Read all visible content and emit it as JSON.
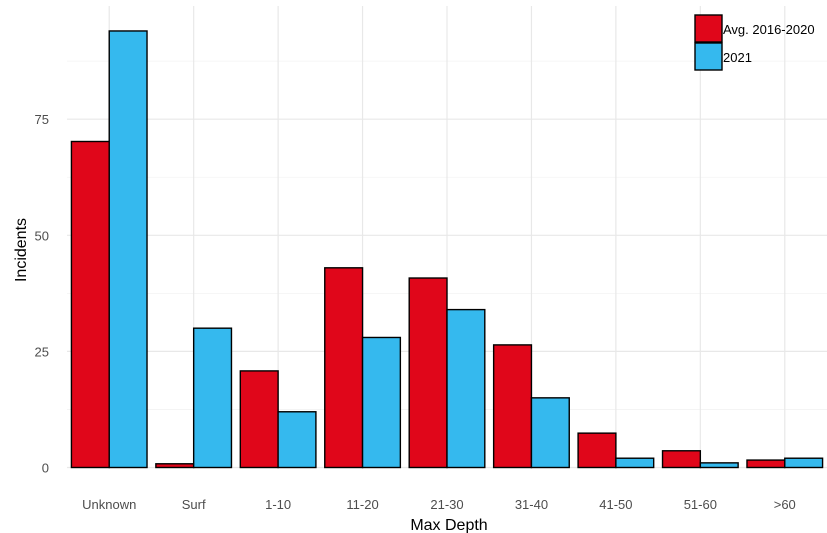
{
  "chart_data": {
    "type": "bar",
    "xlabel": "Max Depth",
    "ylabel": "Incidents",
    "categories": [
      "Unknown",
      "Surf",
      "1-10",
      "11-20",
      "21-30",
      "31-40",
      "41-50",
      "51-60",
      ">60"
    ],
    "series": [
      {
        "name": "Avg. 2016-2020",
        "values": [
          70.2,
          0.8,
          20.8,
          43.0,
          40.8,
          26.4,
          7.4,
          3.6,
          1.6
        ]
      },
      {
        "name": "2021",
        "values": [
          94,
          30,
          12,
          28,
          34,
          15,
          2,
          1,
          2
        ]
      }
    ],
    "ylim": [
      0,
      96
    ],
    "yticks": [
      0,
      25,
      50,
      75
    ],
    "grid": true,
    "legend_position": "top-right",
    "colors": {
      "Avg. 2016-2020": "#e0061a",
      "2021": "#35b9ee"
    }
  }
}
